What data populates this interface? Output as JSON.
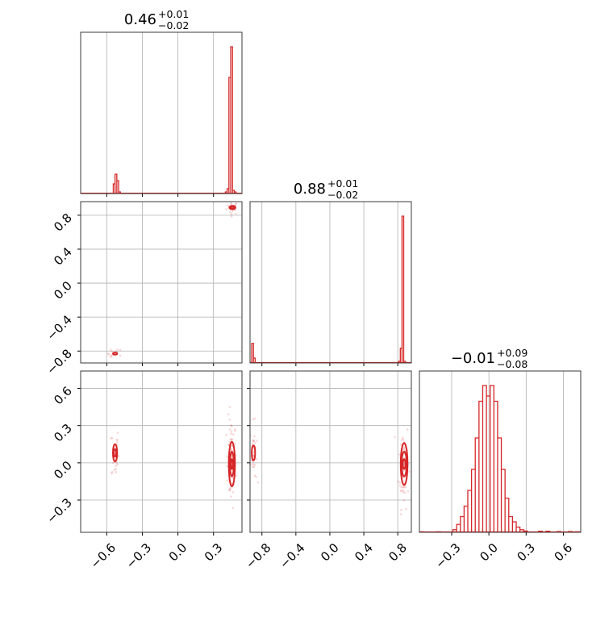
{
  "chart_data": {
    "type": "corner",
    "color": "#d62728",
    "grid": true,
    "params": [
      {
        "range": [
          -0.82,
          0.54
        ],
        "ticks": [
          -0.6,
          -0.3,
          0.0,
          0.3
        ],
        "tick_labels": [
          "−0.6",
          "−0.3",
          "0.0",
          "0.3"
        ],
        "title_value": "0.46",
        "title_plus": "+0.01",
        "title_minus": "−0.02"
      },
      {
        "range": [
          -0.94,
          0.96
        ],
        "ticks": [
          -0.8,
          -0.4,
          0.0,
          0.4,
          0.8
        ],
        "tick_labels": [
          "−0.8",
          "−0.4",
          "0.0",
          "0.4",
          "0.8"
        ],
        "title_value": "0.88",
        "title_plus": "+0.01",
        "title_minus": "−0.02"
      },
      {
        "range": [
          -0.56,
          0.74
        ],
        "ticks": [
          -0.3,
          0.0,
          0.3,
          0.6
        ],
        "tick_labels": [
          "−0.3",
          "0.0",
          "0.3",
          "0.6"
        ],
        "title_value": "−0.01",
        "title_plus": "+0.09",
        "title_minus": "−0.08"
      }
    ],
    "histograms": [
      {
        "param": 0,
        "bins": [
          [
            -0.545,
            -0.53,
            0.06
          ],
          [
            -0.53,
            -0.515,
            0.12
          ],
          [
            -0.515,
            -0.5,
            0.08
          ],
          [
            -0.5,
            -0.485,
            0.01
          ],
          [
            0.4,
            0.415,
            0.01
          ],
          [
            0.415,
            0.43,
            0.03
          ],
          [
            0.43,
            0.445,
            0.72
          ],
          [
            0.445,
            0.46,
            0.91
          ],
          [
            0.46,
            0.475,
            0.02
          ],
          [
            0.475,
            0.49,
            0.01
          ]
        ]
      },
      {
        "param": 1,
        "bins": [
          [
            -0.92,
            -0.9,
            0.12
          ],
          [
            -0.9,
            -0.88,
            0.03
          ],
          [
            0.81,
            0.83,
            0.01
          ],
          [
            0.83,
            0.85,
            0.09
          ],
          [
            0.85,
            0.87,
            0.9
          ],
          [
            0.87,
            0.89,
            0.01
          ]
        ]
      },
      {
        "param": 2,
        "bins": [
          [
            -0.56,
            -0.53,
            0.002
          ],
          [
            -0.42,
            -0.39,
            0.002
          ],
          [
            -0.29,
            -0.26,
            0.01
          ],
          [
            -0.26,
            -0.23,
            0.03
          ],
          [
            -0.23,
            -0.2,
            0.06
          ],
          [
            -0.2,
            -0.17,
            0.1
          ],
          [
            -0.17,
            -0.14,
            0.16
          ],
          [
            -0.14,
            -0.11,
            0.24
          ],
          [
            -0.11,
            -0.08,
            0.36
          ],
          [
            -0.08,
            -0.05,
            0.5
          ],
          [
            -0.05,
            -0.02,
            0.56
          ],
          [
            -0.02,
            0.01,
            0.52
          ],
          [
            0.01,
            0.04,
            0.56
          ],
          [
            0.04,
            0.07,
            0.5
          ],
          [
            0.07,
            0.1,
            0.36
          ],
          [
            0.1,
            0.13,
            0.24
          ],
          [
            0.13,
            0.16,
            0.13
          ],
          [
            0.16,
            0.19,
            0.06
          ],
          [
            0.19,
            0.22,
            0.04
          ],
          [
            0.22,
            0.25,
            0.02
          ],
          [
            0.25,
            0.28,
            0.01
          ],
          [
            0.28,
            0.31,
            0.005
          ],
          [
            0.4,
            0.43,
            0.004
          ],
          [
            0.46,
            0.49,
            0.004
          ],
          [
            0.55,
            0.58,
            0.003
          ],
          [
            0.64,
            0.67,
            0.003
          ],
          [
            0.7,
            0.73,
            0.002
          ]
        ]
      }
    ],
    "scatter_clusters": [
      {
        "px": 0,
        "py": 1,
        "cx": 0.46,
        "cy": 0.89,
        "sx": 0.025,
        "sy": 0.04,
        "n": 28
      },
      {
        "px": 0,
        "py": 1,
        "cx": -0.53,
        "cy": -0.83,
        "sx": 0.03,
        "sy": 0.03,
        "n": 14
      },
      {
        "px": 0,
        "py": 2,
        "cx": 0.45,
        "cy": 0.0,
        "sx": 0.02,
        "sy": 0.18,
        "n": 60
      },
      {
        "px": 0,
        "py": 2,
        "cx": -0.53,
        "cy": 0.08,
        "sx": 0.015,
        "sy": 0.11,
        "n": 30
      },
      {
        "px": 1,
        "py": 2,
        "cx": 0.87,
        "cy": 0.0,
        "sx": 0.03,
        "sy": 0.18,
        "n": 60
      },
      {
        "px": 1,
        "py": 2,
        "cx": -0.9,
        "cy": 0.08,
        "sx": 0.02,
        "sy": 0.12,
        "n": 30
      }
    ],
    "contours": [
      {
        "px": 0,
        "py": 1,
        "cx": 0.46,
        "cy": 0.89,
        "rx": [
          0.015,
          0.025
        ],
        "ry": [
          0.012,
          0.02
        ]
      },
      {
        "px": 0,
        "py": 1,
        "cx": -0.53,
        "cy": -0.83,
        "rx": [
          0.018
        ],
        "ry": [
          0.012
        ]
      },
      {
        "px": 0,
        "py": 2,
        "cx": 0.455,
        "cy": -0.01,
        "rx": [
          0.008,
          0.016,
          0.026
        ],
        "ry": [
          0.04,
          0.1,
          0.18
        ]
      },
      {
        "px": 0,
        "py": 2,
        "cx": -0.53,
        "cy": 0.08,
        "rx": [
          0.01,
          0.018
        ],
        "ry": [
          0.03,
          0.07
        ]
      },
      {
        "px": 1,
        "py": 2,
        "cx": 0.875,
        "cy": -0.01,
        "rx": [
          0.015,
          0.03,
          0.04
        ],
        "ry": [
          0.04,
          0.1,
          0.17
        ]
      },
      {
        "px": 1,
        "py": 2,
        "cx": -0.9,
        "cy": 0.08,
        "rx": [
          0.02
        ],
        "ry": [
          0.06
        ]
      }
    ]
  }
}
